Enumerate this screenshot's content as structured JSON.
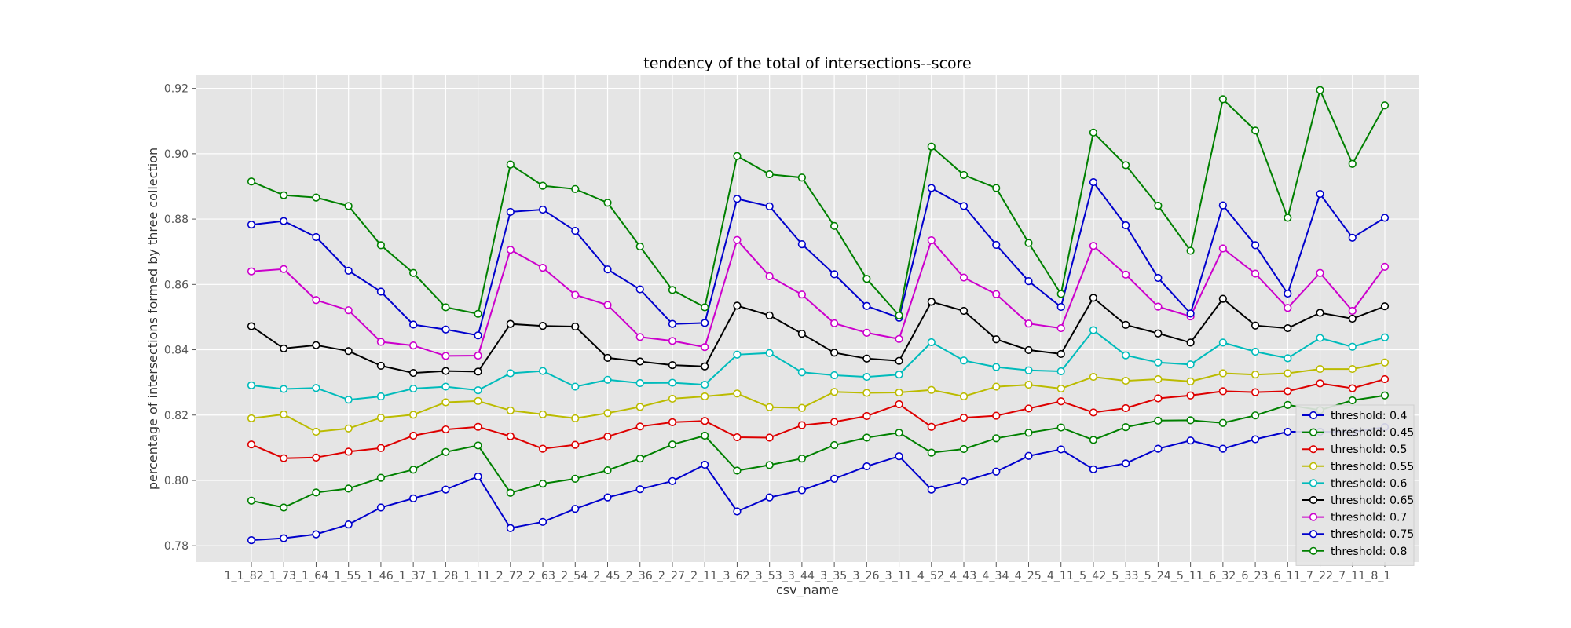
{
  "chart_data": {
    "type": "line",
    "title": "tendency of the total of intersections--score",
    "xlabel": "csv_name",
    "ylabel": "percentage of intersections formed by three collection",
    "ylim": [
      0.775,
      0.924
    ],
    "yticks": [
      0.78,
      0.8,
      0.82,
      0.84,
      0.86,
      0.88,
      0.9,
      0.92
    ],
    "ytick_labels": [
      "0.78",
      "0.80",
      "0.82",
      "0.84",
      "0.86",
      "0.88",
      "0.90",
      "0.92"
    ],
    "grid": true,
    "legend_position": "lower-right",
    "categories": [
      "1_1_8",
      "2_1_7",
      "3_1_6",
      "4_1_5",
      "5_1_4",
      "6_1_3",
      "7_1_2",
      "8_1_1",
      "1_2_7",
      "2_2_6",
      "3_2_5",
      "4_2_4",
      "5_2_3",
      "6_2_2",
      "7_2_1",
      "1_3_6",
      "2_3_5",
      "3_3_4",
      "4_3_3",
      "5_3_2",
      "6_3_1",
      "1_4_5",
      "2_4_4",
      "3_4_3",
      "4_4_2",
      "5_4_1",
      "1_5_4",
      "2_5_3",
      "3_5_2",
      "4_5_1",
      "1_6_3",
      "2_6_2",
      "3_6_1",
      "1_7_2",
      "2_7_1",
      "1_8_1"
    ],
    "x_tick_text": "1_1_82_1_73_1_64_1_55_1_46_1_37_1_28_1_11_2_72_2_63_2_54_2_45_2_36_2_27_2_11_3_62_3_53_3_44_3_35_3_26_3_11_4_52_4_43_4_34_4_25_4_11_5_42_5_33_5_24_5_11_6_32_6_23_6_11_7_22_7_11_8_1",
    "series": [
      {
        "name": "threshold: 0.4",
        "color": "#0000cc",
        "values": [
          0.7817,
          0.7823,
          0.7835,
          0.7865,
          0.7917,
          0.7945,
          0.7972,
          0.8012,
          0.7854,
          0.7873,
          0.7913,
          0.7948,
          0.7973,
          0.7998,
          0.8048,
          0.7905,
          0.7948,
          0.797,
          0.8005,
          0.8043,
          0.8074,
          0.7972,
          0.7997,
          0.8027,
          0.8075,
          0.8095,
          0.8034,
          0.8052,
          0.8097,
          0.8122,
          0.8097,
          0.8126,
          0.8149,
          0.8149,
          0.8148,
          0.8163
        ]
      },
      {
        "name": "threshold: 0.45",
        "color": "#008000",
        "values": [
          0.7938,
          0.7917,
          0.7963,
          0.7975,
          0.8008,
          0.8033,
          0.8087,
          0.8107,
          0.7962,
          0.799,
          0.8005,
          0.8031,
          0.8067,
          0.811,
          0.8137,
          0.803,
          0.8047,
          0.8067,
          0.8108,
          0.8131,
          0.8146,
          0.8085,
          0.8096,
          0.8129,
          0.8146,
          0.8162,
          0.8124,
          0.8163,
          0.8183,
          0.8184,
          0.8176,
          0.8199,
          0.8231,
          0.8215,
          0.8245,
          0.826
        ]
      },
      {
        "name": "threshold: 0.5",
        "color": "#dd0000",
        "values": [
          0.811,
          0.8068,
          0.807,
          0.8088,
          0.8099,
          0.8137,
          0.8156,
          0.8164,
          0.8135,
          0.8097,
          0.8109,
          0.8134,
          0.8165,
          0.8178,
          0.8182,
          0.8132,
          0.8131,
          0.8169,
          0.8179,
          0.8197,
          0.8233,
          0.8164,
          0.8192,
          0.8198,
          0.822,
          0.8242,
          0.8208,
          0.8221,
          0.8251,
          0.826,
          0.8273,
          0.827,
          0.8273,
          0.8297,
          0.8282,
          0.831
        ]
      },
      {
        "name": "threshold: 0.55",
        "color": "#bbbb00",
        "values": [
          0.819,
          0.8202,
          0.8149,
          0.8159,
          0.8192,
          0.8201,
          0.8239,
          0.8243,
          0.8214,
          0.8202,
          0.819,
          0.8206,
          0.8225,
          0.825,
          0.8257,
          0.8266,
          0.8224,
          0.8222,
          0.8271,
          0.8268,
          0.8269,
          0.8277,
          0.8257,
          0.8287,
          0.8293,
          0.8281,
          0.8317,
          0.8305,
          0.831,
          0.8303,
          0.8328,
          0.8324,
          0.8328,
          0.8341,
          0.8341,
          0.8361
        ]
      },
      {
        "name": "threshold: 0.6",
        "color": "#00bbbb",
        "values": [
          0.8291,
          0.828,
          0.8283,
          0.8247,
          0.8257,
          0.8281,
          0.8287,
          0.8276,
          0.8328,
          0.8335,
          0.8287,
          0.8308,
          0.8298,
          0.8299,
          0.8293,
          0.8385,
          0.839,
          0.8331,
          0.8322,
          0.8317,
          0.8324,
          0.8423,
          0.8367,
          0.8347,
          0.8337,
          0.8334,
          0.846,
          0.8383,
          0.8361,
          0.8355,
          0.8422,
          0.8394,
          0.8374,
          0.8436,
          0.8409,
          0.8438
        ]
      },
      {
        "name": "threshold: 0.65",
        "color": "#000000",
        "values": [
          0.8472,
          0.8404,
          0.8414,
          0.8396,
          0.8351,
          0.8329,
          0.8335,
          0.8333,
          0.8479,
          0.8473,
          0.8471,
          0.8375,
          0.8364,
          0.8353,
          0.8349,
          0.8535,
          0.8505,
          0.8449,
          0.8391,
          0.8373,
          0.8366,
          0.8547,
          0.8519,
          0.8432,
          0.8399,
          0.8387,
          0.8559,
          0.8476,
          0.845,
          0.8422,
          0.8556,
          0.8474,
          0.8466,
          0.8513,
          0.8495,
          0.8533
        ]
      },
      {
        "name": "threshold: 0.7",
        "color": "#cc00cc",
        "values": [
          0.864,
          0.8647,
          0.8552,
          0.8521,
          0.8424,
          0.8413,
          0.8381,
          0.8382,
          0.8706,
          0.8651,
          0.8568,
          0.8537,
          0.8439,
          0.8427,
          0.8408,
          0.8736,
          0.8625,
          0.8569,
          0.8481,
          0.8452,
          0.8433,
          0.8735,
          0.8621,
          0.857,
          0.848,
          0.8466,
          0.8718,
          0.863,
          0.8532,
          0.8502,
          0.871,
          0.8633,
          0.8528,
          0.8635,
          0.8519,
          0.8654
        ]
      },
      {
        "name": "threshold: 0.75",
        "color": "#0000cc",
        "values": [
          0.8783,
          0.8794,
          0.8745,
          0.8642,
          0.8578,
          0.8477,
          0.8462,
          0.8444,
          0.8822,
          0.8829,
          0.8764,
          0.8646,
          0.8585,
          0.8479,
          0.8482,
          0.8862,
          0.8839,
          0.8723,
          0.8631,
          0.8534,
          0.8498,
          0.8895,
          0.884,
          0.8721,
          0.861,
          0.8531,
          0.8913,
          0.8781,
          0.862,
          0.8511,
          0.8842,
          0.872,
          0.8572,
          0.8877,
          0.8743,
          0.8804
        ]
      },
      {
        "name": "threshold: 0.8",
        "color": "#008000",
        "values": [
          0.8915,
          0.8873,
          0.8866,
          0.884,
          0.872,
          0.8635,
          0.853,
          0.851,
          0.8967,
          0.8902,
          0.8892,
          0.885,
          0.8716,
          0.8583,
          0.853,
          0.8993,
          0.8937,
          0.8927,
          0.8779,
          0.8617,
          0.8505,
          0.9022,
          0.8935,
          0.8895,
          0.8727,
          0.8571,
          0.9065,
          0.8965,
          0.8841,
          0.8703,
          0.9167,
          0.9071,
          0.8804,
          0.9195,
          0.8969,
          0.9148
        ]
      }
    ]
  }
}
